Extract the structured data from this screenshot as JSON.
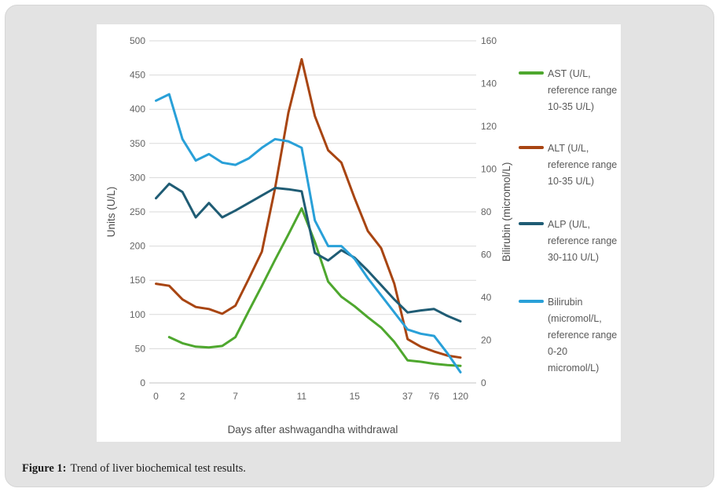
{
  "figure": {
    "caption_prefix": "Figure 1:",
    "caption_text": "Trend of liver biochemical test results."
  },
  "colors": {
    "panel_bg": "#e3e3e3",
    "card_bg": "#ffffff",
    "grid": "#dadada",
    "axis_line": "#c3c3c3",
    "tick_text": "#636363",
    "axis_title_text": "#4d4d4d"
  },
  "chart_data": {
    "type": "line",
    "title": "",
    "grid": true,
    "legend_position": "right",
    "x_axis": {
      "title": "Days after ashwagandha withdrawal",
      "tick_labels": [
        "0",
        "",
        "2",
        "",
        "",
        "",
        "7",
        "",
        "",
        "",
        "",
        "11",
        "",
        "",
        "",
        "15",
        "",
        "",
        "",
        "37",
        "",
        "76",
        "",
        "120"
      ]
    },
    "left_axis": {
      "title": "Units (U/L)",
      "min": 0,
      "max": 500,
      "step": 50,
      "tick_labels": [
        "500",
        "450",
        "400",
        "350",
        "300",
        "250",
        "200",
        "150",
        "100",
        "50",
        "0"
      ]
    },
    "right_axis": {
      "title": "Bilirubin (micromol/L)",
      "min": 0,
      "max": 160,
      "step": 20,
      "tick_labels": [
        "160",
        "140",
        "120",
        "100",
        "80",
        "60",
        "40",
        "20",
        "0"
      ]
    },
    "series": [
      {
        "key": "ast",
        "name": "AST (U/L, reference range 10-35 U/L)",
        "color": "#4ea72e",
        "axis": "left",
        "values": [
          null,
          67,
          58,
          53,
          52,
          54,
          67,
          105,
          142,
          180,
          217,
          255,
          206,
          148,
          126,
          112,
          96,
          81,
          60,
          33,
          31,
          28,
          26,
          25
        ]
      },
      {
        "key": "alt",
        "name": "ALT (U/L, reference range 10-35 U/L)",
        "color": "#a84512",
        "axis": "left",
        "values": [
          145,
          142,
          122,
          111,
          108,
          101,
          113,
          152,
          192,
          285,
          395,
          473,
          390,
          340,
          322,
          270,
          222,
          197,
          145,
          64,
          53,
          46,
          40,
          37
        ]
      },
      {
        "key": "alp",
        "name": "ALP (U/L, reference range 30-110 U/L)",
        "color": "#1f5c74",
        "axis": "left",
        "values": [
          270,
          291,
          279,
          242,
          263,
          242,
          252,
          263,
          274,
          285,
          283,
          280,
          190,
          179,
          194,
          183,
          164,
          143,
          122,
          103,
          106,
          108,
          98,
          90
        ]
      },
      {
        "key": "bilirubin",
        "name": "Bilirubin (micromol/L, reference range 0-20 micromol/L)",
        "color": "#29a0d8",
        "axis": "right",
        "values": [
          132,
          135,
          114,
          104,
          107,
          103,
          102,
          105,
          110,
          114,
          113,
          110,
          76,
          64,
          64,
          58,
          49,
          41,
          33,
          25,
          23,
          22,
          14,
          5
        ]
      }
    ]
  }
}
